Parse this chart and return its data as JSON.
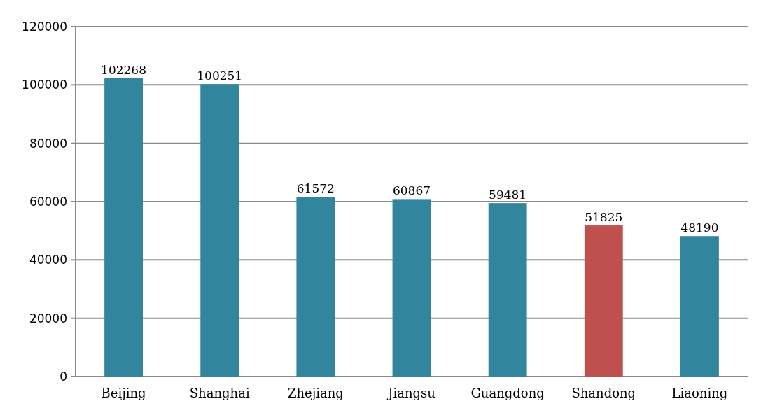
{
  "chart_data": {
    "type": "bar",
    "categories": [
      "Beijing",
      "Shanghai",
      "Zhejiang",
      "Jiangsu",
      "Guangdong",
      "Shandong",
      "Liaoning"
    ],
    "values": [
      102268,
      100251,
      61572,
      60867,
      59481,
      51825,
      48190
    ],
    "colors": [
      "#31859c",
      "#31859c",
      "#31859c",
      "#31859c",
      "#31859c",
      "#c0504d",
      "#31859c"
    ],
    "ylim": [
      0,
      120000
    ],
    "yticks": [
      0,
      20000,
      40000,
      60000,
      80000,
      100000,
      120000
    ],
    "grid": "y",
    "data_labels": true
  }
}
